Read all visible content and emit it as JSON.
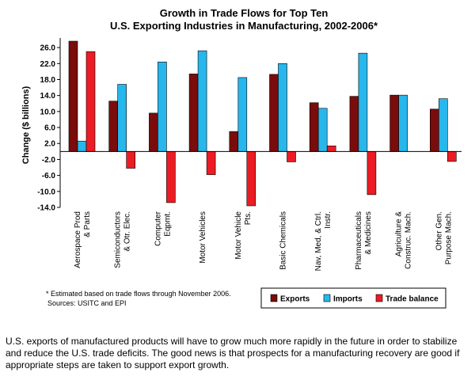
{
  "chart_data": {
    "type": "bar",
    "title_line1": "Growth in Trade Flows for Top Ten",
    "title_line2": "U.S. Exporting Industries in Manufacturing, 2002-2006*",
    "xlabel": "",
    "ylabel": "Change ($ billions)",
    "ylim": [
      -14,
      28
    ],
    "yticks": [
      "26.0",
      "22.0",
      "18.0",
      "14.0",
      "10.0",
      "6.0",
      "2.0",
      "-2.0",
      "-6.0",
      "-10.0",
      "-14.0"
    ],
    "grid": false,
    "legend_position": "bottom-right",
    "categories": [
      [
        "Aerospace Prod",
        "& Parts"
      ],
      [
        "Semiconductors",
        "& Otr. Elec."
      ],
      [
        "Computer",
        "Eqpmt."
      ],
      [
        "Motor Vehicles"
      ],
      [
        "Motor Vehicle",
        "Pts."
      ],
      [
        "Basic Chemicals"
      ],
      [
        "Nav, Med, & Ctrl.",
        "Instr."
      ],
      [
        "Pharmaceuticals",
        "& Medicines"
      ],
      [
        "Agriculture &",
        "Construc. Mach."
      ],
      [
        "Other Gen.",
        "Purpose Mach."
      ]
    ],
    "series": [
      {
        "name": "Exports",
        "color": "#7a0c0c",
        "values": [
          27.6,
          12.6,
          9.6,
          19.4,
          5.0,
          19.3,
          12.2,
          13.8,
          14.1,
          10.6
        ]
      },
      {
        "name": "Imports",
        "color": "#27b7ec",
        "values": [
          2.6,
          16.8,
          22.4,
          25.2,
          18.5,
          22.0,
          10.8,
          24.6,
          14.1,
          13.2
        ]
      },
      {
        "name": "Trade balance",
        "color": "#ec1c24",
        "values": [
          25.0,
          -4.2,
          -12.8,
          -5.8,
          -13.6,
          -2.6,
          1.4,
          -10.8,
          0.0,
          -2.5
        ]
      }
    ],
    "footnote": "* Estimated based on trade flows through November 2006.",
    "sources": "Sources: USITC and EPI"
  },
  "caption": "U.S. exports of manufactured products will have to grow much more rapidly in the future in order to stabilize and reduce the U.S. trade deficits.  The good news is that prospects for a manufacturing recovery are good if appropriate steps are taken to support export growth."
}
